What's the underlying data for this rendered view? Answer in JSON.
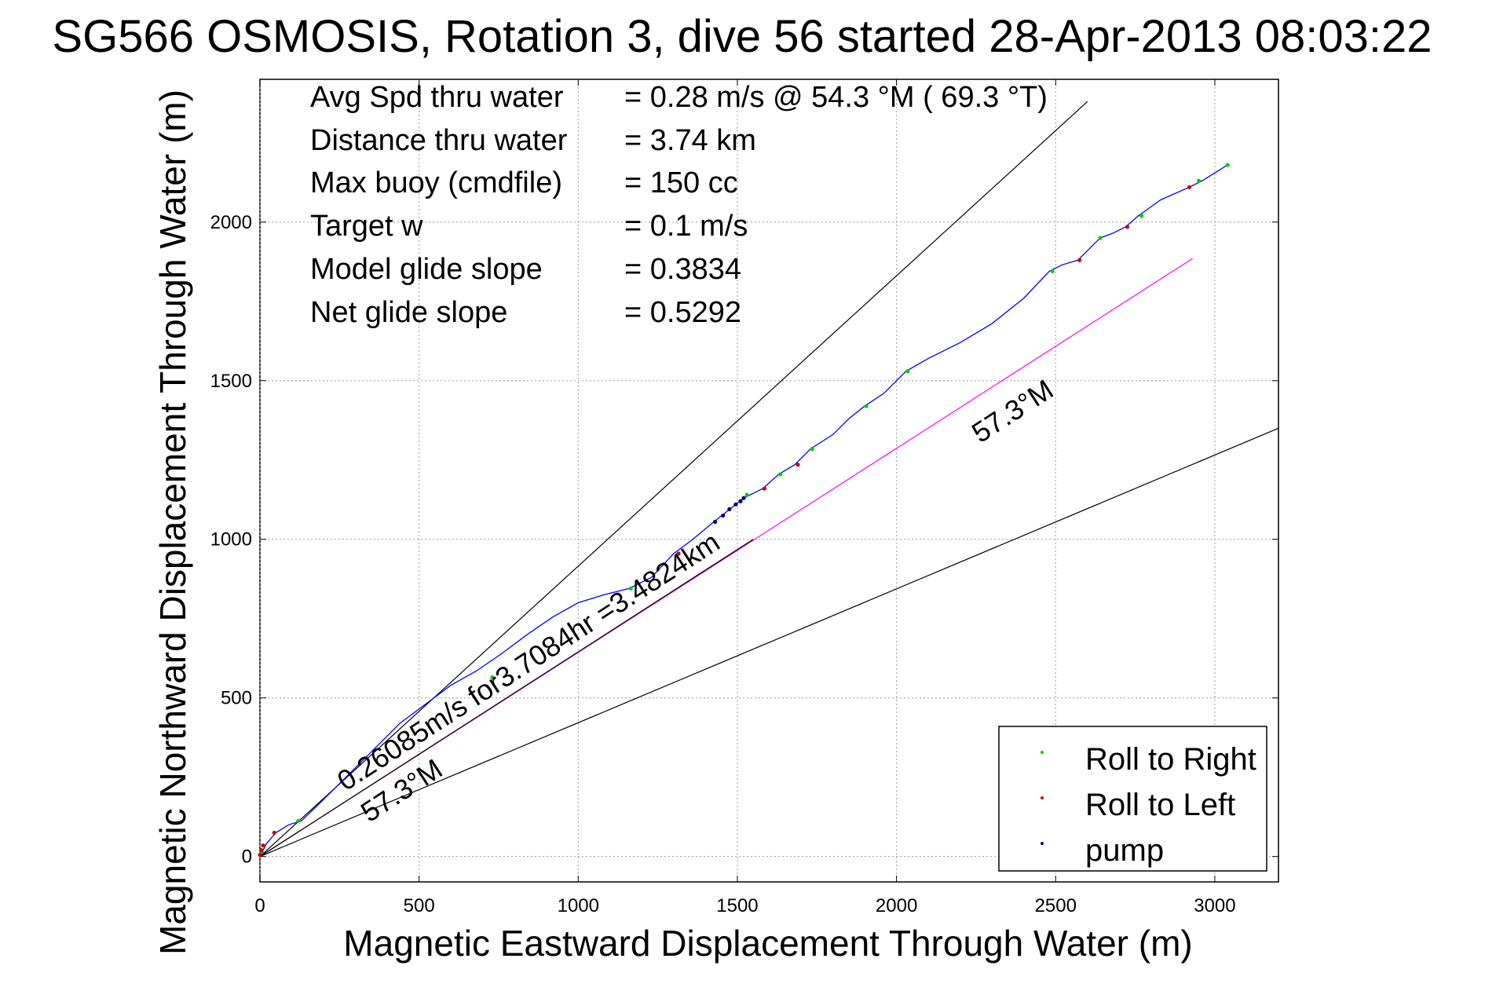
{
  "chart_data": {
    "type": "line",
    "title": "SG566 OSMOSIS, Rotation 3, dive 56 started 28-Apr-2013 08:03:22",
    "xlabel": "Magnetic Eastward Displacement Through Water (m)",
    "ylabel": "Magnetic Northward Displacement Through Water (m)",
    "xlim": [
      0,
      3200
    ],
    "ylim": [
      -80,
      2450
    ],
    "xticks": [
      "0",
      "500",
      "1000",
      "1500",
      "2000",
      "2500",
      "3000"
    ],
    "yticks": [
      "0",
      "500",
      "1000",
      "1500",
      "2000"
    ],
    "grid": true,
    "legend_position": "bottom-right",
    "info_lines": [
      {
        "label": "Avg Spd thru water",
        "value": "=  0.28 m/s @  54.3 °M ( 69.3 °T)"
      },
      {
        "label": "Distance thru water",
        "value": "=  3.74 km"
      },
      {
        "label": "Max buoy (cmdfile)",
        "value": "= 150 cc"
      },
      {
        "label": "Target w",
        "value": "= 0.1 m/s"
      },
      {
        "label": "Model glide slope",
        "value": "= 0.3834"
      },
      {
        "label": "Net glide slope",
        "value": "= 0.5292"
      }
    ],
    "annotations": {
      "net_label": "0.26085m/s for3.7084hr =3.4824km",
      "heading_label_upper": "57.3°M",
      "heading_label_lower": "57.3°M"
    },
    "reference_lines": [
      {
        "name": "upper-bound",
        "color": "#000000",
        "x": [
          0,
          2600
        ],
        "y": [
          0,
          2380
        ]
      },
      {
        "name": "lower-bound",
        "color": "#000000",
        "x": [
          0,
          3200
        ],
        "y": [
          0,
          1350
        ]
      },
      {
        "name": "net-heading",
        "color": "#ff00ff",
        "x": [
          0,
          2930
        ],
        "y": [
          0,
          1885
        ]
      },
      {
        "name": "net-heading-shadow",
        "color": "#000000",
        "x": [
          0,
          1550
        ],
        "y": [
          0,
          1000
        ]
      }
    ],
    "track": {
      "color": "#0000ff",
      "x": [
        0,
        20,
        50,
        90,
        130,
        200,
        280,
        360,
        440,
        520,
        600,
        680,
        760,
        840,
        920,
        1000,
        1080,
        1160,
        1230,
        1300,
        1360,
        1420,
        1470,
        1520,
        1580,
        1630,
        1680,
        1730,
        1800,
        1850,
        1900,
        1960,
        2030,
        2100,
        2200,
        2300,
        2400,
        2480,
        2520,
        2570,
        2610,
        2640,
        2680,
        2720,
        2760,
        2830,
        2920,
        2960,
        3000,
        3040
      ],
      "y": [
        0,
        40,
        75,
        100,
        112,
        180,
        260,
        340,
        420,
        480,
        540,
        585,
        640,
        700,
        755,
        800,
        825,
        845,
        880,
        955,
        1000,
        1050,
        1090,
        1130,
        1160,
        1205,
        1235,
        1285,
        1330,
        1380,
        1420,
        1460,
        1530,
        1570,
        1620,
        1680,
        1760,
        1845,
        1865,
        1880,
        1920,
        1950,
        1965,
        1985,
        2020,
        2070,
        2110,
        2130,
        2155,
        2180
      ]
    },
    "series": [
      {
        "name": "Roll to Right",
        "color": "#00cc00",
        "x": [
          5,
          120,
          730,
          1165,
          1530,
          1635,
          1735,
          1905,
          2035,
          2490,
          2640,
          2770,
          2950,
          3040
        ],
        "y": [
          15,
          112,
          565,
          845,
          1140,
          1205,
          1285,
          1420,
          1530,
          1845,
          1950,
          2020,
          2130,
          2180
        ]
      },
      {
        "name": "Roll to Left",
        "color": "#cc0000",
        "x": [
          0,
          5,
          10,
          45,
          1315,
          1585,
          1690,
          2575,
          2725,
          2920
        ],
        "y": [
          5,
          20,
          35,
          75,
          955,
          1160,
          1235,
          1880,
          1985,
          2110
        ]
      },
      {
        "name": "pump",
        "color": "#000080",
        "x": [
          1430,
          1455,
          1475,
          1495,
          1510,
          1520
        ],
        "y": [
          1055,
          1075,
          1095,
          1110,
          1120,
          1130
        ]
      }
    ]
  }
}
